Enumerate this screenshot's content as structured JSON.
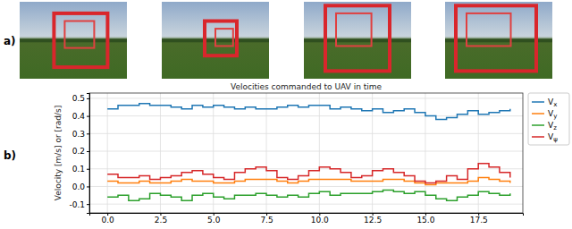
{
  "panel_labels": [
    "a)",
    "b)"
  ],
  "chart_data": {
    "type": "line",
    "title": "Velocities commanded to UAV in time",
    "y_label": "Velocity [m/s] or [rad/s]",
    "line_style": "steps",
    "grid": true,
    "legend": "right",
    "xlim": [
      -0.85,
      19.6
    ],
    "ylim": [
      -0.15,
      0.53
    ],
    "xticks": [
      {
        "value": 0,
        "label": "0.0"
      },
      2.5,
      {
        "value": 5,
        "label": "5.0"
      },
      7.5,
      {
        "value": 10,
        "label": "10.0"
      },
      12.5,
      {
        "value": 15,
        "label": "15.0"
      },
      17.5
    ],
    "yticks": [
      -0.1,
      {
        "value": 0,
        "label": "0.0"
      },
      0.1,
      0.2,
      0.3,
      0.4,
      0.5
    ],
    "x": [
      0,
      0.5,
      1,
      1.5,
      2,
      2.5,
      3,
      3.5,
      4,
      4.5,
      5,
      5.5,
      6,
      6.5,
      7,
      7.5,
      8,
      8.5,
      9,
      9.5,
      10,
      10.5,
      11,
      11.5,
      12,
      12.5,
      13,
      13.5,
      14,
      14.5,
      15,
      15.5,
      16,
      16.5,
      17,
      17.5,
      18,
      18.5,
      19
    ],
    "series": [
      {
        "name": "Vx",
        "color": "#1f77b4",
        "values": [
          0.44,
          0.46,
          0.46,
          0.47,
          0.46,
          0.46,
          0.45,
          0.44,
          0.46,
          0.45,
          0.46,
          0.45,
          0.44,
          0.45,
          0.44,
          0.44,
          0.45,
          0.46,
          0.45,
          0.46,
          0.46,
          0.44,
          0.45,
          0.44,
          0.43,
          0.44,
          0.42,
          0.43,
          0.44,
          0.42,
          0.4,
          0.38,
          0.39,
          0.41,
          0.43,
          0.41,
          0.42,
          0.43,
          0.44
        ]
      },
      {
        "name": "Vy",
        "color": "#ff7f0e",
        "values": [
          0.03,
          0.02,
          0.02,
          0.03,
          0.02,
          0.02,
          0.03,
          0.04,
          0.03,
          0.03,
          0.02,
          0.02,
          0.03,
          0.04,
          0.04,
          0.04,
          0.03,
          0.02,
          0.03,
          0.04,
          0.04,
          0.04,
          0.04,
          0.03,
          0.03,
          0.03,
          0.04,
          0.04,
          0.03,
          0.02,
          0.01,
          0.02,
          0.02,
          0.02,
          0.03,
          0.05,
          0.04,
          0.03,
          0.02
        ]
      },
      {
        "name": "Vz",
        "color": "#2ca02c",
        "values": [
          -0.06,
          -0.05,
          -0.08,
          -0.07,
          -0.04,
          -0.05,
          -0.06,
          -0.08,
          -0.05,
          -0.04,
          -0.06,
          -0.07,
          -0.05,
          -0.05,
          -0.04,
          -0.05,
          -0.06,
          -0.05,
          -0.06,
          -0.04,
          -0.03,
          -0.05,
          -0.04,
          -0.04,
          -0.04,
          -0.03,
          -0.02,
          -0.03,
          -0.04,
          -0.03,
          -0.05,
          -0.07,
          -0.08,
          -0.06,
          -0.05,
          -0.03,
          -0.04,
          -0.05,
          -0.04
        ]
      },
      {
        "name": "Vψ",
        "color": "#d62728",
        "values": [
          0.07,
          0.05,
          0.05,
          0.06,
          0.04,
          0.05,
          0.06,
          0.08,
          0.09,
          0.07,
          0.05,
          0.04,
          0.08,
          0.1,
          0.11,
          0.09,
          0.05,
          0.04,
          0.06,
          0.09,
          0.11,
          0.1,
          0.08,
          0.05,
          0.06,
          0.09,
          0.1,
          0.08,
          0.06,
          0.03,
          0.02,
          0.03,
          0.06,
          0.04,
          0.1,
          0.13,
          0.11,
          0.08,
          0.05
        ]
      }
    ]
  }
}
